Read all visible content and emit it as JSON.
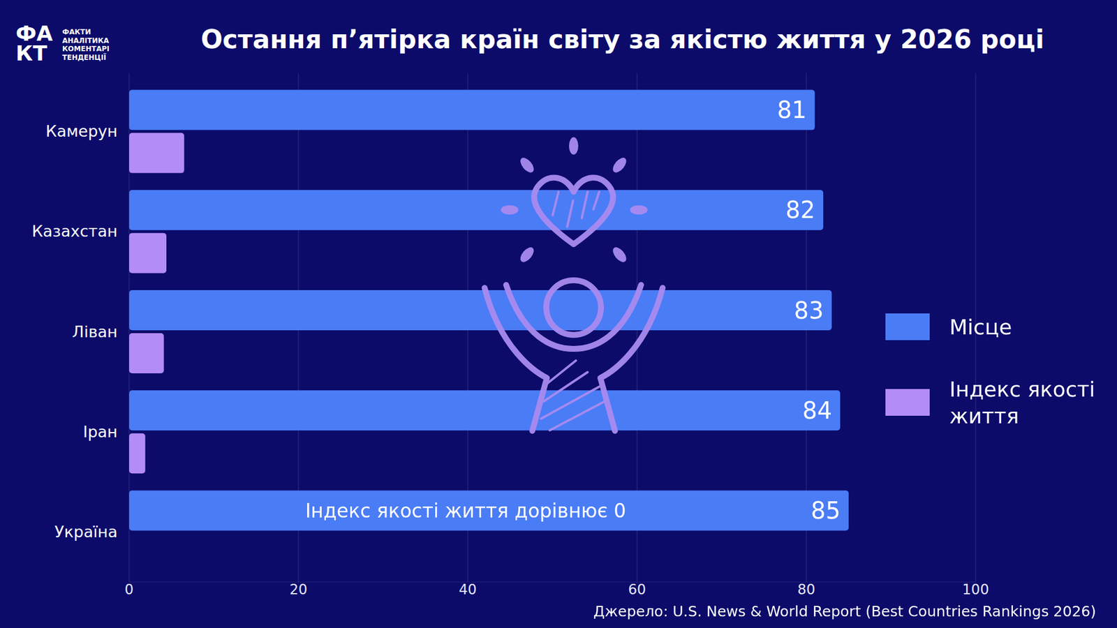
{
  "chart_data": {
    "type": "bar",
    "orientation": "horizontal",
    "title": "Остання п’ятірка країн світу за якістю життя у 2026 році",
    "categories": [
      "Камерун",
      "Казахстан",
      "Ліван",
      "Іран",
      "Україна"
    ],
    "series": [
      {
        "name": "Місце",
        "color": "#4a7cf6",
        "values": [
          81,
          82,
          83,
          84,
          85
        ],
        "data_labels": true
      },
      {
        "name": "Індекс якості життя",
        "color": "#b48cf6",
        "values": [
          6.5,
          4.4,
          4.1,
          1.9,
          0
        ],
        "data_labels": false
      }
    ],
    "xlim": [
      0,
      100
    ],
    "xticks": [
      0,
      20,
      40,
      60,
      80,
      100
    ],
    "grid": true,
    "legend": "right",
    "annotations": [
      "Індекс якості життя дорівнює 0"
    ],
    "source": "Джерело: U.S. News & World Report (Best Countries Rankings 2026)",
    "logo": {
      "mark": [
        "ФА",
        "КТ"
      ],
      "lines": [
        "ФАКТИ",
        "АНАЛІТИКА",
        "КОМЕНТАРІ",
        "ТЕНДЕНЦІЇ"
      ]
    }
  }
}
